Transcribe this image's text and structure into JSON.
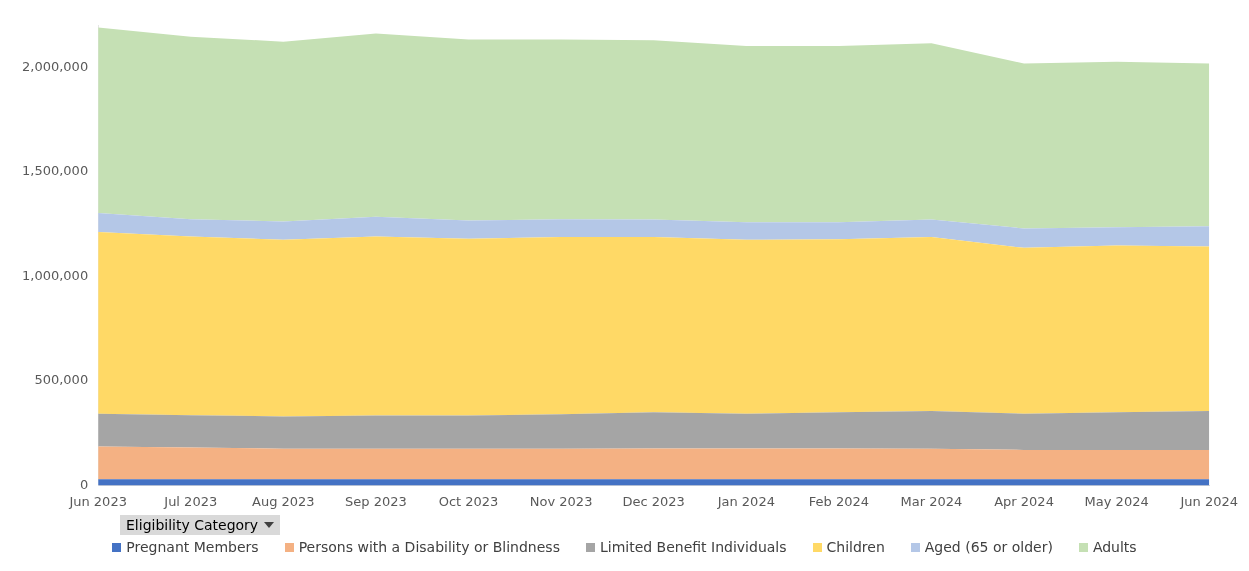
{
  "chart_data": {
    "type": "area",
    "stacked": true,
    "legend": "bottom",
    "legend_title": "Eligibility Category",
    "categories": [
      "Jun 2023",
      "Jul 2023",
      "Aug 2023",
      "Sep 2023",
      "Oct 2023",
      "Nov 2023",
      "Dec 2023",
      "Jan 2024",
      "Feb 2024",
      "Mar 2024",
      "Apr 2024",
      "May 2024",
      "Jun 2024"
    ],
    "ylim": [
      0,
      2200000
    ],
    "yticks": [
      0,
      {
        "value": 500000,
        "label": "500,000"
      },
      {
        "value": 1000000,
        "label": "1,000,000"
      },
      {
        "value": 1500000,
        "label": "1,500,000"
      },
      {
        "value": 2000000,
        "label": "2,000,000"
      }
    ],
    "grid": false,
    "series": [
      {
        "name": "Pregnant Members",
        "color": "#4472c4",
        "values": [
          30000,
          30000,
          30000,
          30000,
          30000,
          30000,
          30000,
          30000,
          30000,
          30000,
          30000,
          30000,
          30000
        ]
      },
      {
        "name": "Persons with a Disability or Blindness",
        "color": "#f4b183",
        "values": [
          156000,
          152000,
          146000,
          146000,
          146000,
          146000,
          147000,
          147000,
          147000,
          145000,
          140000,
          140000,
          140000
        ]
      },
      {
        "name": "Limited Benefit Individuals",
        "color": "#a5a5a5",
        "values": [
          157000,
          154000,
          154000,
          158000,
          158000,
          165000,
          173000,
          166000,
          173000,
          181000,
          173000,
          180000,
          186000
        ]
      },
      {
        "name": "Children",
        "color": "#ffd966",
        "values": [
          870000,
          855000,
          846000,
          857000,
          847000,
          848000,
          839000,
          833000,
          828000,
          833000,
          794000,
          798000,
          787000
        ]
      },
      {
        "name": "Aged (65 or older)",
        "color": "#b4c7e7",
        "values": [
          91000,
          83000,
          87000,
          95000,
          87000,
          85000,
          84000,
          84000,
          82000,
          84000,
          93000,
          88000,
          97000
        ]
      },
      {
        "name": "Adults",
        "color": "#c5e0b4",
        "values": [
          888000,
          874000,
          861000,
          877000,
          867000,
          861000,
          858000,
          843000,
          843000,
          843000,
          789000,
          792000,
          779000
        ]
      }
    ]
  }
}
